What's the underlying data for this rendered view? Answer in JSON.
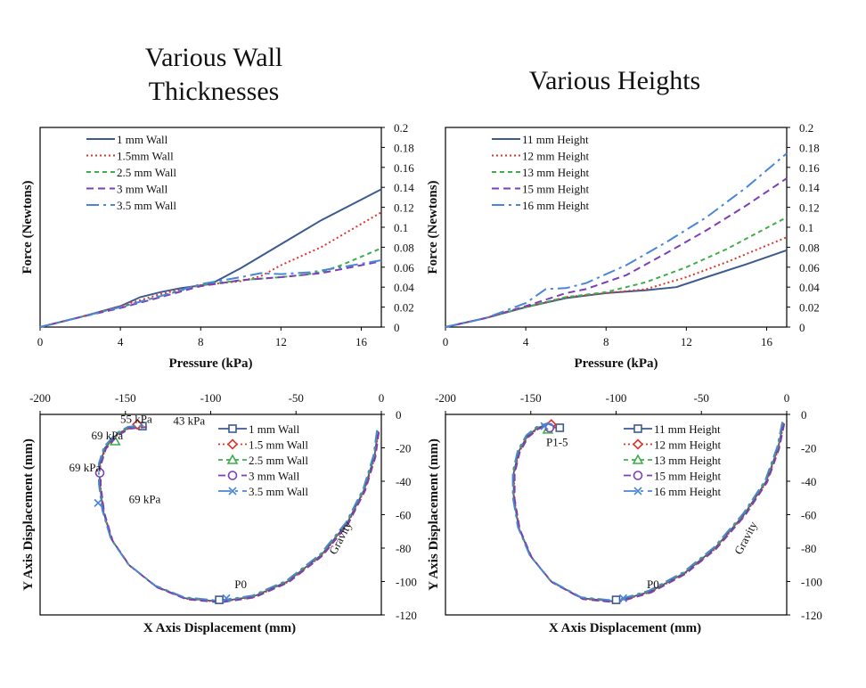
{
  "titles": {
    "left": "Various Wall Thicknesses",
    "right": "Various Heights"
  },
  "colors": {
    "blue_dark": "#3d5a8f",
    "red": "#d9382e",
    "green": "#3fae49",
    "purple": "#7c3fb7",
    "light_blue": "#4a86d6"
  },
  "chart_data": [
    {
      "type": "line",
      "title": "Various Wall Thicknesses",
      "xlabel": "Pressure (kPa)",
      "ylabel": "Force (Newtons)",
      "xlim": [
        0,
        17
      ],
      "ylim": [
        0,
        0.2
      ],
      "xticks": [
        "0",
        "4",
        "8",
        "12",
        "16"
      ],
      "yticks": [
        "0",
        "0.02",
        "0.04",
        "0.06",
        "0.08",
        "0.1",
        "0.12",
        "0.14",
        "0.16",
        "0.18",
        "0.2"
      ],
      "legend_position": "top-left",
      "series": [
        {
          "name": "1 mm Wall",
          "x": [
            0,
            2,
            4,
            5,
            6,
            7,
            8.5,
            10,
            12,
            14,
            17
          ],
          "y": [
            0,
            0.01,
            0.021,
            0.03,
            0.035,
            0.039,
            0.043,
            0.059,
            0.083,
            0.107,
            0.138
          ]
        },
        {
          "name": "1.5mm Wall",
          "x": [
            0,
            2,
            4,
            6,
            8,
            10,
            11,
            12,
            14,
            17
          ],
          "y": [
            0,
            0.01,
            0.021,
            0.033,
            0.042,
            0.046,
            0.051,
            0.062,
            0.08,
            0.115
          ]
        },
        {
          "name": "2.5 mm Wall",
          "x": [
            0,
            2,
            4,
            6,
            8,
            10,
            12,
            13,
            14,
            15,
            17
          ],
          "y": [
            0,
            0.01,
            0.02,
            0.031,
            0.042,
            0.047,
            0.05,
            0.052,
            0.055,
            0.062,
            0.079
          ]
        },
        {
          "name": "3 mm Wall",
          "x": [
            0,
            2,
            4,
            6,
            8,
            10,
            12,
            14,
            16,
            17
          ],
          "y": [
            0,
            0.01,
            0.019,
            0.03,
            0.041,
            0.047,
            0.05,
            0.054,
            0.062,
            0.066
          ]
        },
        {
          "name": "3.5 mm Wall",
          "x": [
            0,
            2,
            4,
            6,
            8,
            10,
            11,
            12,
            13.5,
            15,
            17
          ],
          "y": [
            0,
            0.01,
            0.02,
            0.031,
            0.043,
            0.05,
            0.054,
            0.053,
            0.055,
            0.06,
            0.067
          ]
        }
      ]
    },
    {
      "type": "line",
      "title": "Various Heights",
      "xlabel": "Pressure (kPa)",
      "ylabel": "Force (Newtons)",
      "xlim": [
        0,
        17
      ],
      "ylim": [
        0,
        0.2
      ],
      "xticks": [
        "0",
        "4",
        "8",
        "12",
        "16"
      ],
      "yticks": [
        "0",
        "0.02",
        "0.04",
        "0.06",
        "0.08",
        "0.1",
        "0.12",
        "0.14",
        "0.16",
        "0.18",
        "0.2"
      ],
      "legend_position": "top-left",
      "series": [
        {
          "name": "11 mm Height",
          "x": [
            0,
            2,
            4,
            6,
            8,
            10,
            11.5,
            13,
            15,
            17
          ],
          "y": [
            0,
            0.009,
            0.02,
            0.029,
            0.034,
            0.037,
            0.04,
            0.05,
            0.063,
            0.077
          ]
        },
        {
          "name": "12 mm Height",
          "x": [
            0,
            2,
            4,
            6,
            8,
            10,
            12,
            14,
            17
          ],
          "y": [
            0,
            0.009,
            0.02,
            0.03,
            0.034,
            0.038,
            0.05,
            0.065,
            0.09
          ]
        },
        {
          "name": "13 mm Height",
          "x": [
            0,
            2,
            4,
            6,
            8,
            10,
            12,
            14,
            17
          ],
          "y": [
            0,
            0.009,
            0.02,
            0.03,
            0.035,
            0.045,
            0.06,
            0.078,
            0.11
          ]
        },
        {
          "name": "15 mm Height",
          "x": [
            0,
            2,
            4,
            6,
            7,
            9,
            11,
            13,
            15,
            17
          ],
          "y": [
            0,
            0.009,
            0.021,
            0.034,
            0.038,
            0.052,
            0.074,
            0.097,
            0.122,
            0.149
          ]
        },
        {
          "name": "16 mm Height",
          "x": [
            0,
            2,
            4,
            5,
            6,
            7,
            9,
            11,
            13,
            15,
            17
          ],
          "y": [
            0,
            0.009,
            0.024,
            0.038,
            0.039,
            0.044,
            0.062,
            0.085,
            0.11,
            0.14,
            0.174
          ]
        }
      ]
    },
    {
      "type": "scatter",
      "title": "",
      "xlabel": "X Axis Displacement (mm)",
      "ylabel": "Y Axis Displacement (mm)",
      "xlim": [
        -200,
        0
      ],
      "ylim": [
        -120,
        0
      ],
      "xticks": [
        "-200",
        "-150",
        "-100",
        "-50",
        "0"
      ],
      "yticks": [
        "0",
        "-20",
        "-40",
        "-60",
        "-80",
        "-100",
        "-120"
      ],
      "legend_position": "top-right",
      "path": {
        "x": [
          -2,
          -4,
          -10,
          -20,
          -35,
          -55,
          -75,
          -95,
          -115,
          -132,
          -148,
          -158,
          -163,
          -165,
          -165,
          -162,
          -155,
          -148,
          -138
        ],
        "y": [
          -10,
          -25,
          -45,
          -65,
          -84,
          -100,
          -109,
          -112,
          -110,
          -103,
          -90,
          -75,
          -58,
          -42,
          -30,
          -20,
          -12,
          -8,
          -7
        ]
      },
      "series": [
        {
          "name": "1 mm Wall",
          "endpoint": [
            -140,
            -7
          ]
        },
        {
          "name": "1.5 mm Wall",
          "endpoint": [
            -143,
            -6
          ]
        },
        {
          "name": "2.5 mm Wall",
          "endpoint": [
            -156,
            -16
          ]
        },
        {
          "name": "3 mm Wall",
          "endpoint": [
            -165,
            -35
          ]
        },
        {
          "name": "3.5 mm Wall",
          "endpoint": [
            -166,
            -53
          ]
        }
      ],
      "annotations": [
        {
          "text": "55 kPa",
          "x": -153,
          "y": -5
        },
        {
          "text": "43 kPa",
          "x": -122,
          "y": -6
        },
        {
          "text": "69 kPa",
          "x": -170,
          "y": -15
        },
        {
          "text": "69 kPa",
          "x": -183,
          "y": -34
        },
        {
          "text": "69 kPa",
          "x": -148,
          "y": -53
        },
        {
          "text": "P0",
          "x": -86,
          "y": -104
        },
        {
          "text": "Gravity",
          "x": -22,
          "y": -75
        }
      ]
    },
    {
      "type": "scatter",
      "title": "",
      "xlabel": "X Axis Displacement (mm)",
      "ylabel": "Y Axis Displacement (mm)",
      "xlim": [
        -200,
        0
      ],
      "ylim": [
        -120,
        0
      ],
      "xticks": [
        "-200",
        "-150",
        "-100",
        "-50",
        "0"
      ],
      "yticks": [
        "0",
        "-20",
        "-40",
        "-60",
        "-80",
        "-100",
        "-120"
      ],
      "legend_position": "top-right",
      "path": {
        "x": [
          -2,
          -5,
          -12,
          -25,
          -42,
          -60,
          -80,
          -100,
          -120,
          -138,
          -150,
          -157,
          -160,
          -160,
          -157,
          -152,
          -146,
          -140,
          -135
        ],
        "y": [
          -5,
          -20,
          -40,
          -60,
          -80,
          -95,
          -106,
          -112,
          -110,
          -100,
          -85,
          -68,
          -50,
          -35,
          -22,
          -13,
          -8,
          -6,
          -8
        ]
      },
      "series": [
        {
          "name": "11 mm Height",
          "endpoint": [
            -133,
            -8
          ]
        },
        {
          "name": "12 mm Height",
          "endpoint": [
            -138,
            -6
          ]
        },
        {
          "name": "13 mm Height",
          "endpoint": [
            -140,
            -9
          ]
        },
        {
          "name": "15 mm Height",
          "endpoint": [
            -139,
            -8
          ]
        },
        {
          "name": "16 mm Height",
          "endpoint": [
            -142,
            -7
          ]
        }
      ],
      "annotations": [
        {
          "text": "P1-5",
          "x": -141,
          "y": -19
        },
        {
          "text": "P0",
          "x": -82,
          "y": -104
        },
        {
          "text": "Gravity",
          "x": -22,
          "y": -75
        }
      ]
    }
  ]
}
